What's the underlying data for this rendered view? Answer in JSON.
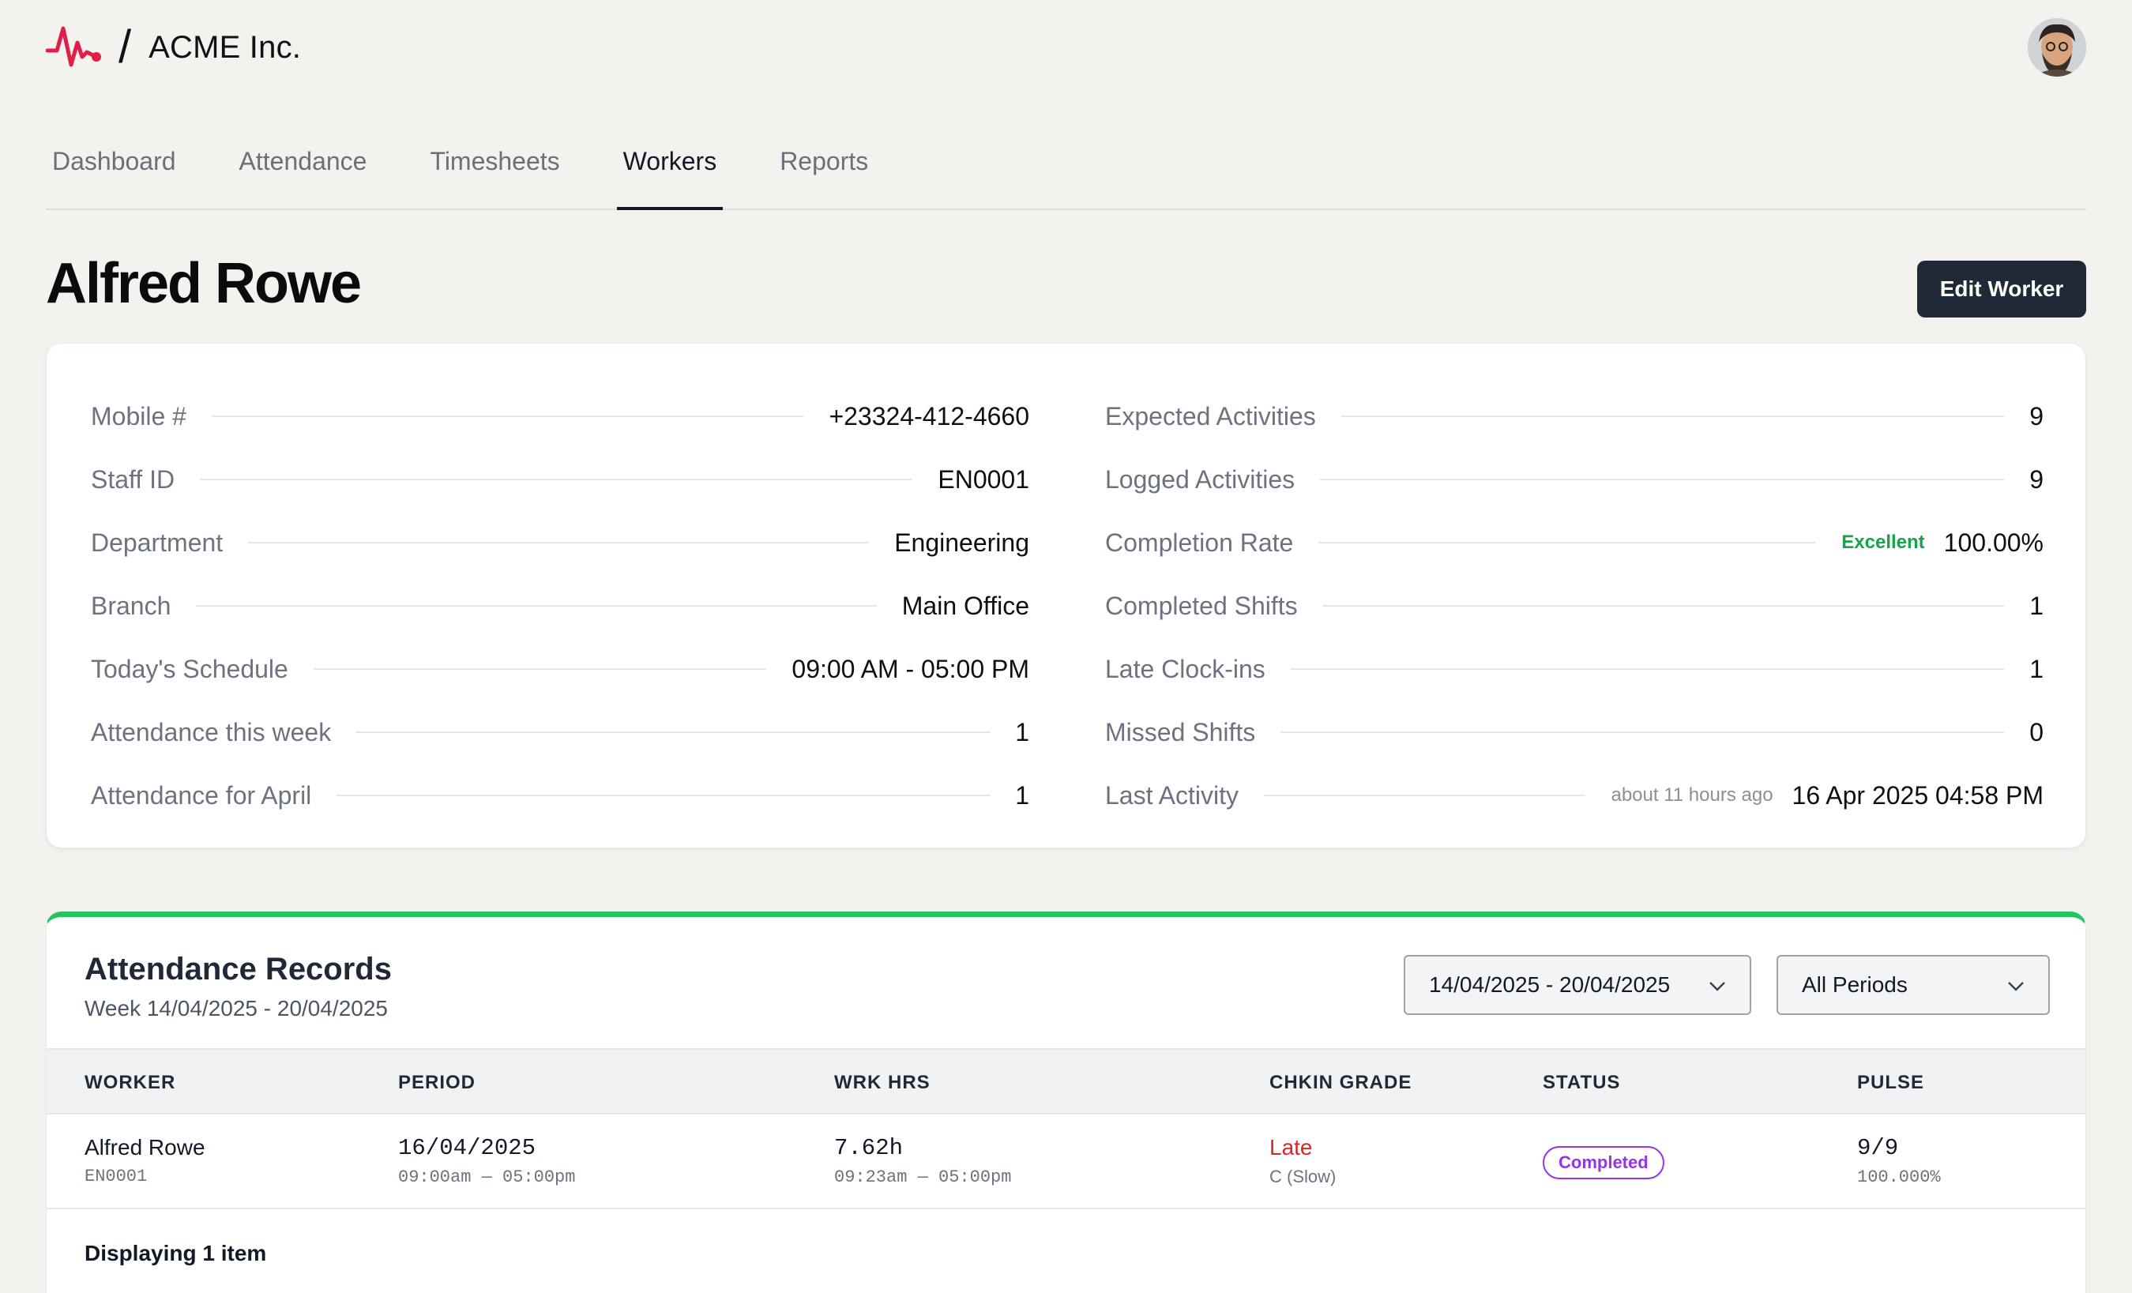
{
  "header": {
    "org_name": "ACME Inc.",
    "separator": "/",
    "brand_color": "#e11d48"
  },
  "tabs": [
    {
      "label": "Dashboard",
      "active": false
    },
    {
      "label": "Attendance",
      "active": false
    },
    {
      "label": "Timesheets",
      "active": false
    },
    {
      "label": "Workers",
      "active": true
    },
    {
      "label": "Reports",
      "active": false
    }
  ],
  "worker": {
    "name": "Alfred Rowe",
    "edit_label": "Edit Worker"
  },
  "details_left": [
    {
      "label": "Mobile #",
      "value": "+23324-412-4660"
    },
    {
      "label": "Staff ID",
      "value": "EN0001"
    },
    {
      "label": "Department",
      "value": "Engineering"
    },
    {
      "label": "Branch",
      "value": "Main Office"
    },
    {
      "label": "Today's Schedule",
      "value": "09:00 AM - 05:00 PM"
    },
    {
      "label": "Attendance this week",
      "value": "1"
    },
    {
      "label": "Attendance for April",
      "value": "1"
    }
  ],
  "details_right": [
    {
      "label": "Expected Activities",
      "value": "9",
      "pre": ""
    },
    {
      "label": "Logged Activities",
      "value": "9",
      "pre": ""
    },
    {
      "label": "Completion Rate",
      "value": "100.00%",
      "pre": "Excellent"
    },
    {
      "label": "Completed Shifts",
      "value": "1",
      "pre": ""
    },
    {
      "label": "Late Clock-ins",
      "value": "1",
      "pre": ""
    },
    {
      "label": "Missed Shifts",
      "value": "0",
      "pre": ""
    },
    {
      "label": "Last Activity",
      "value": "16 Apr 2025 04:58 PM",
      "pre": "about 11 hours ago"
    }
  ],
  "attendance": {
    "title": "Attendance Records",
    "subtitle": "Week 14/04/2025 - 20/04/2025",
    "date_range": "14/04/2025 - 20/04/2025",
    "period_filter": "All Periods",
    "accent_color": "#22c55e",
    "columns": [
      "WORKER",
      "PERIOD",
      "WRK HRS",
      "CHKIN GRADE",
      "STATUS",
      "PULSE"
    ],
    "rows": [
      {
        "worker_name": "Alfred Rowe",
        "worker_id": "EN0001",
        "period_date": "16/04/2025",
        "period_hours": "09:00am — 05:00pm",
        "work_hours": "7.62h",
        "work_range": "09:23am — 05:00pm",
        "grade": "Late",
        "grade_detail": "C (Slow)",
        "status": "Completed",
        "pulse": "9/9",
        "pulse_pct": "100.000%"
      }
    ],
    "footer": "Displaying 1 item"
  }
}
